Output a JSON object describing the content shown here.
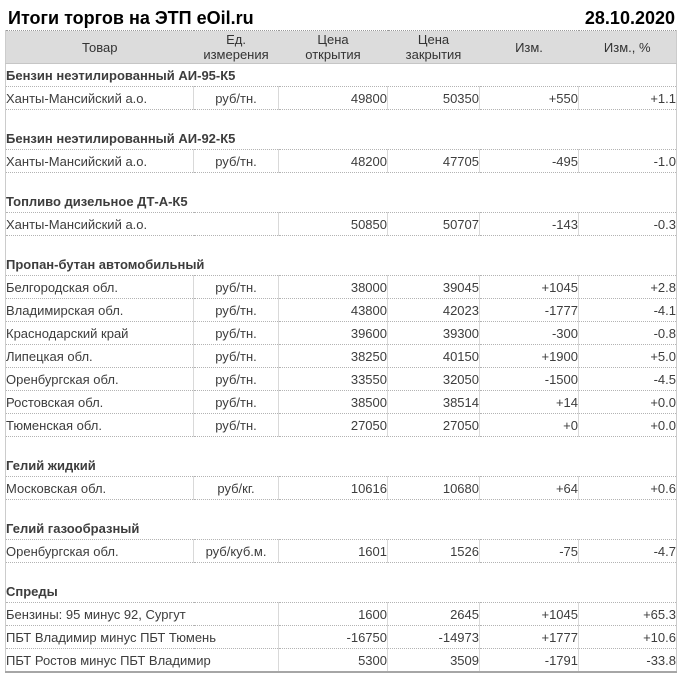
{
  "page": {
    "title": "Итоги торгов на ЭТП eOil.ru",
    "date": "28.10.2020"
  },
  "table": {
    "columns": [
      "Товар",
      "Ед.\nизмерения",
      "Цена\nоткрытия",
      "Цена\nзакрытия",
      "Изм.",
      "Изм., %"
    ],
    "colors": {
      "up": "#008000",
      "down": "#c00000",
      "zero": "#3d3d3d",
      "header_bg": "#dcdcdc"
    },
    "sections": [
      {
        "title": "Бензин неэтилированный АИ-95-К5",
        "rows": [
          {
            "name": "Ханты-Мансийский а.о.",
            "unit": "руб/тн.",
            "open": "49800",
            "close": "50350",
            "change": "+550",
            "change_pct": "+1.1",
            "dir": "up"
          }
        ]
      },
      {
        "title": "Бензин неэтилированный АИ-92-К5",
        "rows": [
          {
            "name": "Ханты-Мансийский а.о.",
            "unit": "руб/тн.",
            "open": "48200",
            "close": "47705",
            "change": "-495",
            "change_pct": "-1.0",
            "dir": "down"
          }
        ]
      },
      {
        "title": "Топливо дизельное ДТ-А-К5",
        "rows": [
          {
            "name": "Ханты-Мансийский а.о.",
            "unit": null,
            "open": "50850",
            "close": "50707",
            "change": "-143",
            "change_pct": "-0.3",
            "dir": "down"
          }
        ]
      },
      {
        "title": "Пропан-бутан автомобильный",
        "rows": [
          {
            "name": "Белгородская обл.",
            "unit": "руб/тн.",
            "open": "38000",
            "close": "39045",
            "change": "+1045",
            "change_pct": "+2.8",
            "dir": "up"
          },
          {
            "name": "Владимирская обл.",
            "unit": "руб/тн.",
            "open": "43800",
            "close": "42023",
            "change": "-1777",
            "change_pct": "-4.1",
            "dir": "down"
          },
          {
            "name": "Краснодарский край",
            "unit": "руб/тн.",
            "open": "39600",
            "close": "39300",
            "change": "-300",
            "change_pct": "-0.8",
            "dir": "down"
          },
          {
            "name": "Липецкая обл.",
            "unit": "руб/тн.",
            "open": "38250",
            "close": "40150",
            "change": "+1900",
            "change_pct": "+5.0",
            "dir": "up"
          },
          {
            "name": "Оренбургская обл.",
            "unit": "руб/тн.",
            "open": "33550",
            "close": "32050",
            "change": "-1500",
            "change_pct": "-4.5",
            "dir": "down"
          },
          {
            "name": "Ростовская обл.",
            "unit": "руб/тн.",
            "open": "38500",
            "close": "38514",
            "change": "+14",
            "change_pct": "+0.0",
            "dir": "up"
          },
          {
            "name": "Тюменская обл.",
            "unit": "руб/тн.",
            "open": "27050",
            "close": "27050",
            "change": "+0",
            "change_pct": "+0.0",
            "dir": "zero"
          }
        ]
      },
      {
        "title": "Гелий жидкий",
        "rows": [
          {
            "name": "Московская обл.",
            "unit": "руб/кг.",
            "open": "10616",
            "close": "10680",
            "change": "+64",
            "change_pct": "+0.6",
            "dir": "up"
          }
        ]
      },
      {
        "title": "Гелий газообразный",
        "rows": [
          {
            "name": "Оренбургская обл.",
            "unit": "руб/куб.м.",
            "open": "1601",
            "close": "1526",
            "change": "-75",
            "change_pct": "-4.7",
            "dir": "down"
          }
        ]
      },
      {
        "title": "Спреды",
        "rows": [
          {
            "name": "Бензины: 95 минус 92, Сургут",
            "unit": null,
            "open": "1600",
            "close": "2645",
            "change": "+1045",
            "change_pct": "+65.3",
            "dir": "up"
          },
          {
            "name": "ПБТ Владимир минус ПБТ Тюмень",
            "unit": null,
            "open": "-16750",
            "close": "-14973",
            "change": "+1777",
            "change_pct": "+10.6",
            "dir": "up"
          },
          {
            "name": "ПБТ Ростов минус ПБТ Владимир",
            "unit": null,
            "open": "5300",
            "close": "3509",
            "change": "-1791",
            "change_pct": "-33.8",
            "dir": "down"
          }
        ]
      }
    ]
  }
}
